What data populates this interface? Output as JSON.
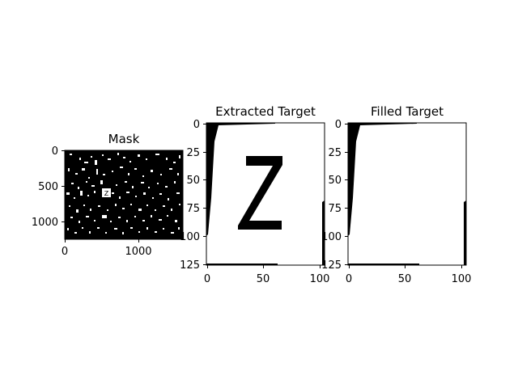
{
  "colors": {
    "background": "#ffffff",
    "foreground": "#000000"
  },
  "panels": [
    {
      "title": "Mask",
      "x_ticks": [
        "0",
        "1000"
      ],
      "y_ticks": [
        "0",
        "500",
        "1000"
      ]
    },
    {
      "title": "Extracted Target",
      "x_ticks": [
        "0",
        "50",
        "100"
      ],
      "y_ticks": [
        "0",
        "25",
        "50",
        "75",
        "100",
        "125"
      ],
      "glyph": "Z"
    },
    {
      "title": "Filled Target",
      "x_ticks": [
        "0",
        "50",
        "100"
      ],
      "y_ticks": [
        "0",
        "25",
        "50",
        "75",
        "100",
        "125"
      ]
    }
  ]
}
